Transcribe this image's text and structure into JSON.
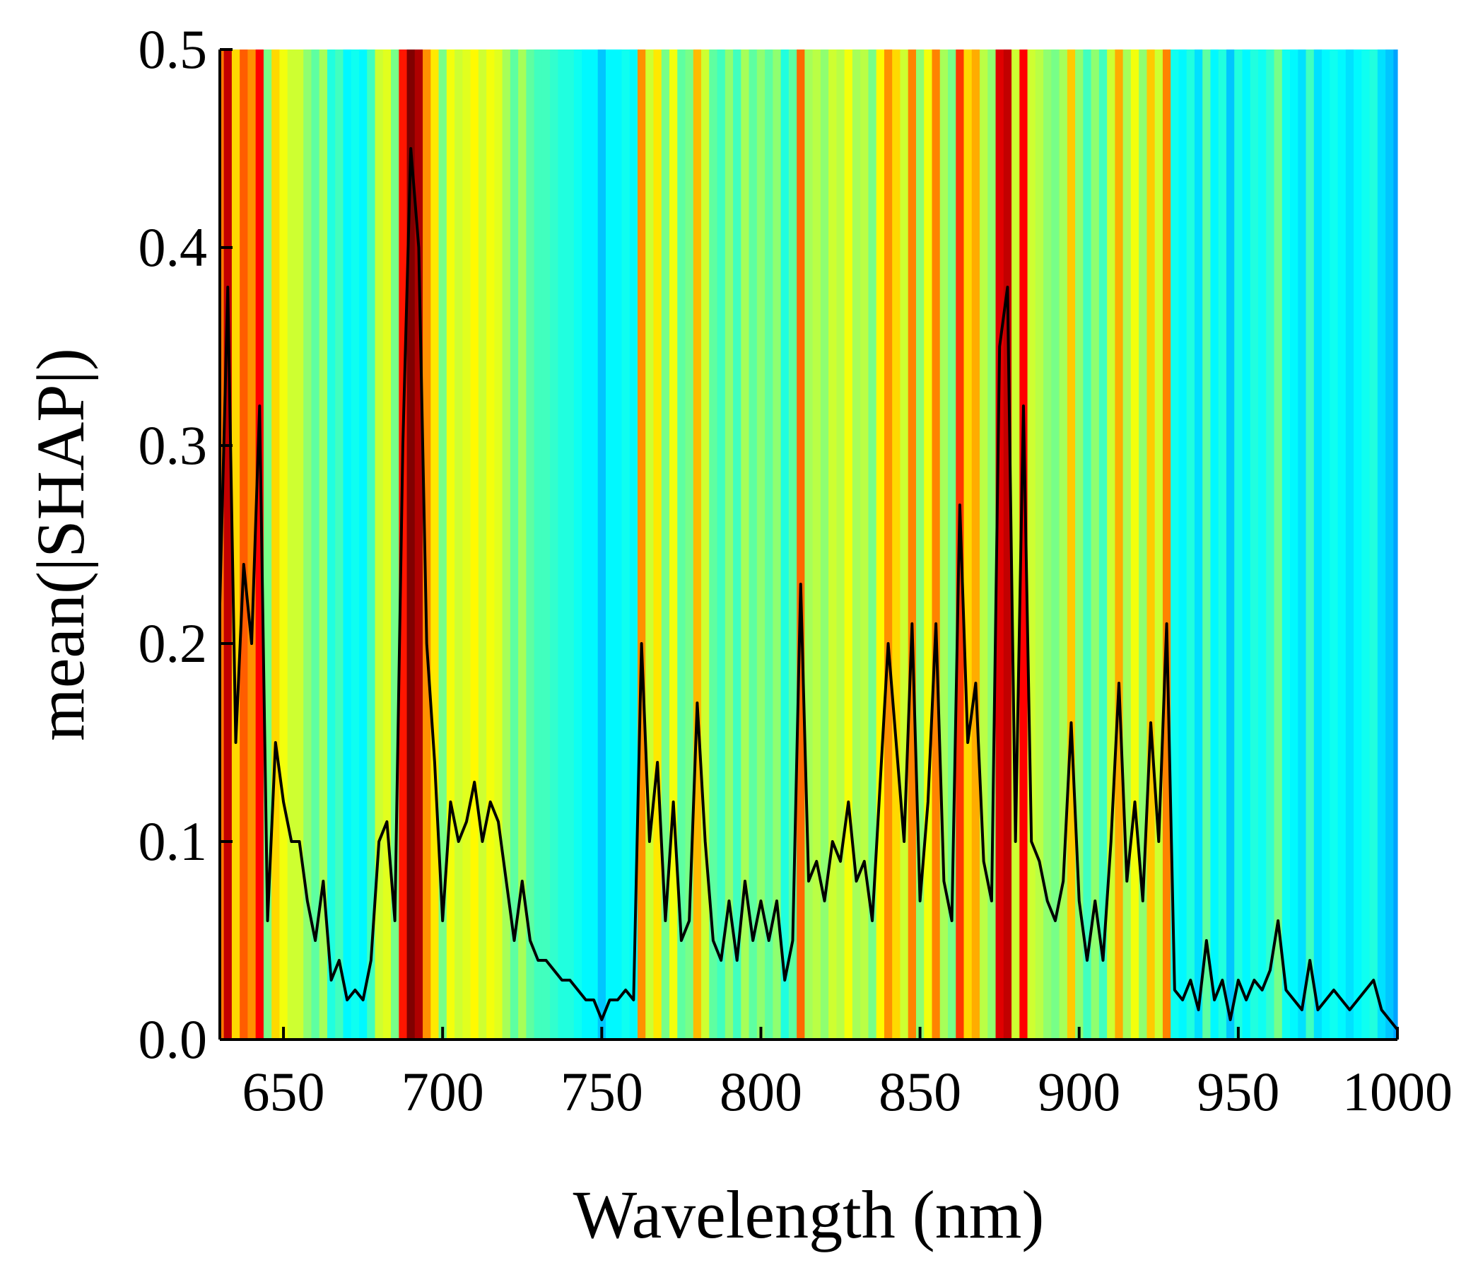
{
  "chart_data": {
    "type": "line",
    "x_label": "Wavelength (nm)",
    "y_label": "mean(|SHAP|)",
    "colormap": "jet",
    "color": "#000000",
    "xlim": [
      630,
      1000
    ],
    "ylim": [
      0,
      0.5
    ],
    "xticks": [
      650,
      700,
      750,
      800,
      850,
      900,
      950,
      1000
    ],
    "yticks": [
      {
        "value": 0,
        "label": "0.0"
      },
      0.1,
      0.2,
      0.3,
      0.4,
      0.5
    ],
    "x": [
      630,
      632.5,
      635,
      637.5,
      640,
      642.5,
      645,
      647.5,
      650,
      652.5,
      655,
      657.5,
      660,
      662.5,
      665,
      667.5,
      670,
      672.5,
      675,
      677.5,
      680,
      682.5,
      685,
      687.5,
      690,
      692.5,
      695,
      697.5,
      700,
      702.5,
      705,
      707.5,
      710,
      712.5,
      715,
      717.5,
      720,
      722.5,
      725,
      727.5,
      730,
      732.5,
      735,
      737.5,
      740,
      742.5,
      745,
      747.5,
      750,
      752.5,
      755,
      757.5,
      760,
      762.5,
      765,
      767.5,
      770,
      772.5,
      775,
      777.5,
      780,
      782.5,
      785,
      787.5,
      790,
      792.5,
      795,
      797.5,
      800,
      802.5,
      805,
      807.5,
      810,
      812.5,
      815,
      817.5,
      820,
      822.5,
      825,
      827.5,
      830,
      832.5,
      835,
      837.5,
      840,
      842.5,
      845,
      847.5,
      850,
      852.5,
      855,
      857.5,
      860,
      862.5,
      865,
      867.5,
      870,
      872.5,
      875,
      877.5,
      880,
      882.5,
      885,
      887.5,
      890,
      892.5,
      895,
      897.5,
      900,
      902.5,
      905,
      907.5,
      910,
      912.5,
      915,
      917.5,
      920,
      922.5,
      925,
      927.5,
      930,
      932.5,
      935,
      937.5,
      940,
      942.5,
      945,
      947.5,
      950,
      952.5,
      955,
      957.5,
      960,
      962.5,
      965,
      967.5,
      970,
      972.5,
      975,
      977.5,
      980,
      982.5,
      985,
      987.5,
      990,
      992.5,
      995,
      997.5,
      1000
    ],
    "values": [
      0.22,
      0.38,
      0.15,
      0.24,
      0.2,
      0.32,
      0.06,
      0.15,
      0.12,
      0.1,
      0.1,
      0.07,
      0.05,
      0.08,
      0.03,
      0.04,
      0.02,
      0.025,
      0.02,
      0.04,
      0.1,
      0.11,
      0.06,
      0.3,
      0.45,
      0.4,
      0.2,
      0.14,
      0.06,
      0.12,
      0.1,
      0.11,
      0.13,
      0.1,
      0.12,
      0.11,
      0.08,
      0.05,
      0.08,
      0.05,
      0.04,
      0.04,
      0.035,
      0.03,
      0.03,
      0.025,
      0.02,
      0.02,
      0.01,
      0.02,
      0.02,
      0.025,
      0.02,
      0.2,
      0.1,
      0.14,
      0.06,
      0.12,
      0.05,
      0.06,
      0.17,
      0.1,
      0.05,
      0.04,
      0.07,
      0.04,
      0.08,
      0.05,
      0.07,
      0.05,
      0.07,
      0.03,
      0.05,
      0.23,
      0.08,
      0.09,
      0.07,
      0.1,
      0.09,
      0.12,
      0.08,
      0.09,
      0.06,
      0.13,
      0.2,
      0.15,
      0.1,
      0.21,
      0.07,
      0.12,
      0.21,
      0.08,
      0.06,
      0.27,
      0.15,
      0.18,
      0.09,
      0.07,
      0.35,
      0.38,
      0.1,
      0.32,
      0.1,
      0.09,
      0.07,
      0.06,
      0.08,
      0.16,
      0.07,
      0.04,
      0.07,
      0.04,
      0.1,
      0.18,
      0.08,
      0.12,
      0.07,
      0.16,
      0.1,
      0.21,
      0.025,
      0.02,
      0.03,
      0.015,
      0.05,
      0.02,
      0.03,
      0.01,
      0.03,
      0.02,
      0.03,
      0.025,
      0.035,
      0.06,
      0.025,
      0.02,
      0.015,
      0.04,
      0.015,
      0.02,
      0.025,
      0.02,
      0.015,
      0.02,
      0.025,
      0.03,
      0.015,
      0.01,
      0.005
    ]
  }
}
